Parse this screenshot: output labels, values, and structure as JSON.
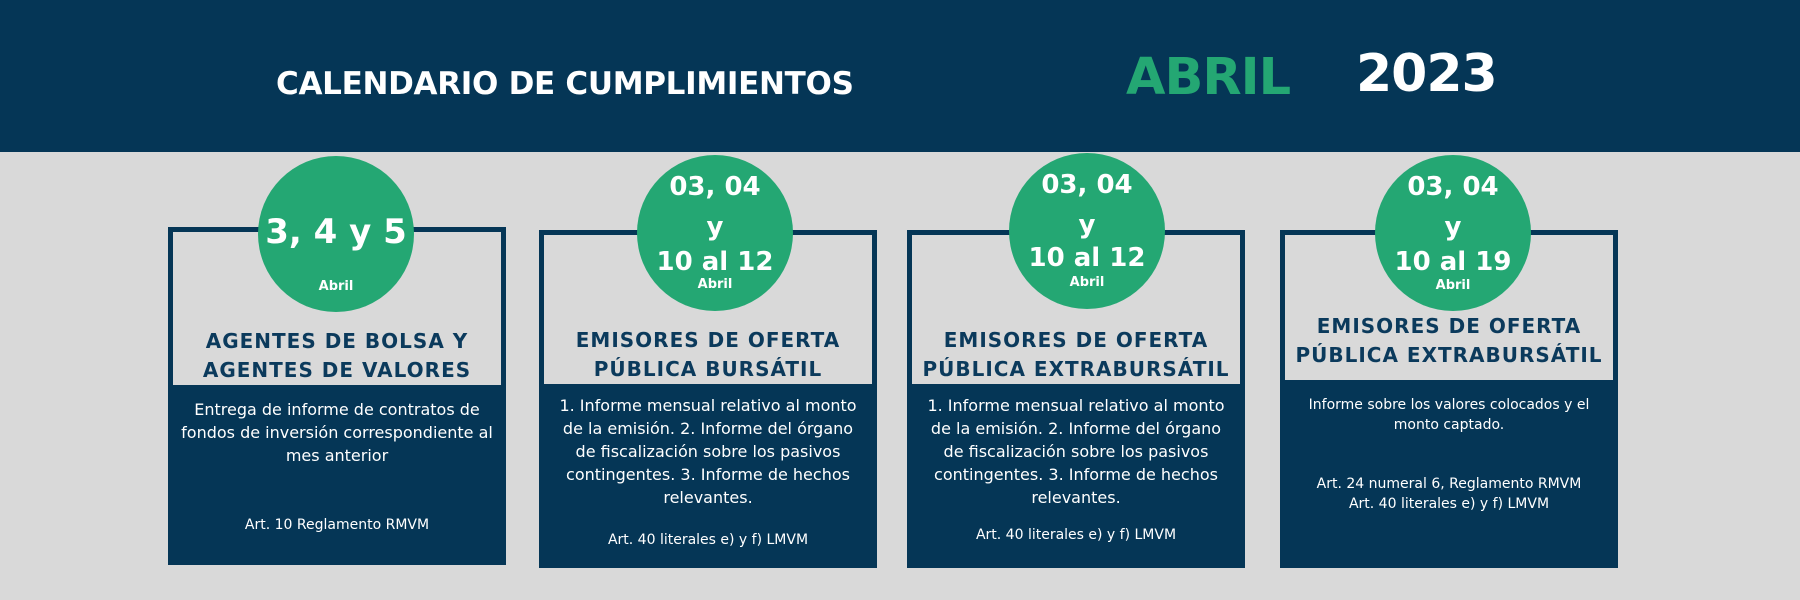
{
  "header": {
    "title": "CALENDARIO DE CUMPLIMIENTOS",
    "month": "ABRIL",
    "year": "2023"
  },
  "colors": {
    "navy": "#053656",
    "green": "#24a773",
    "background": "#d9d9d9"
  },
  "cards": [
    {
      "date_lines": [
        "3, 4 y 5"
      ],
      "month": "Abril",
      "heading_lines": [
        "AGENTES DE BOLSA Y",
        "AGENTES DE VALORES"
      ],
      "description": "Entrega de informe de contratos de fondos de inversión correspondiente al mes anterior",
      "reference_lines": [
        "Art. 10 Reglamento RMVM"
      ]
    },
    {
      "date_lines": [
        "03, 04",
        "y",
        "10 al 12"
      ],
      "month": "Abril",
      "heading_lines": [
        "EMISORES DE OFERTA",
        "PÚBLICA BURSÁTIL"
      ],
      "description": "1. Informe mensual relativo al monto de la emisión. 2. Informe del órgano de fiscalización sobre los pasivos contingentes. 3. Informe de hechos relevantes.",
      "reference_lines": [
        "Art. 40 literales e) y f) LMVM"
      ]
    },
    {
      "date_lines": [
        "03, 04",
        "y",
        "10 al 12"
      ],
      "month": "Abril",
      "heading_lines": [
        "EMISORES DE OFERTA",
        "PÚBLICA EXTRABURSÁTIL"
      ],
      "description": "1. Informe mensual relativo al monto de la emisión. 2. Informe del órgano de fiscalización sobre los pasivos contingentes. 3. Informe de hechos relevantes.",
      "reference_lines": [
        "Art. 40 literales e) y f) LMVM"
      ]
    },
    {
      "date_lines": [
        "03, 04",
        "y",
        "10 al 19"
      ],
      "month": "Abril",
      "heading_lines": [
        "EMISORES DE OFERTA",
        "PÚBLICA EXTRABURSÁTIL"
      ],
      "description": "Informe sobre los valores colocados y el monto captado.",
      "reference_lines": [
        "Art. 24 numeral 6, Reglamento RMVM",
        "Art. 40 literales e) y f) LMVM"
      ]
    }
  ]
}
